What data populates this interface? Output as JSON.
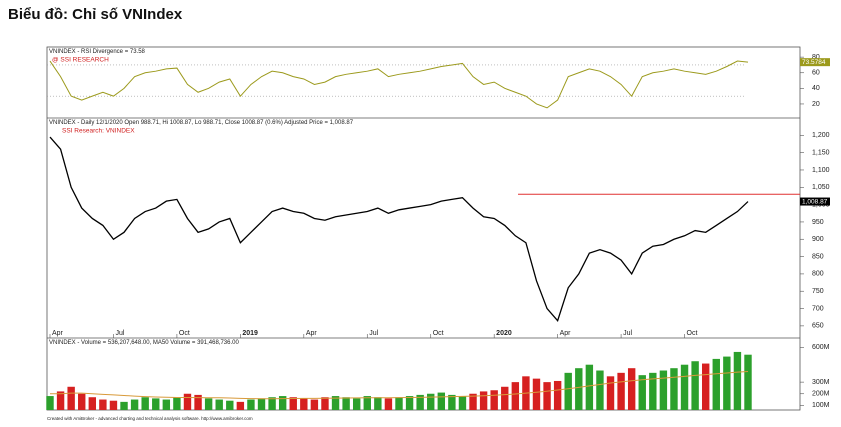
{
  "page_title": "Biểu đồ: Chỉ số VNIndex",
  "footer": "Created with AmiBroker - advanced charting and technical analysis software. http://www.amibroker.com",
  "categories": [
    "Apr",
    null,
    null,
    null,
    null,
    null,
    "Jul",
    null,
    null,
    null,
    null,
    null,
    "Oct",
    null,
    null,
    null,
    null,
    null,
    "2019",
    null,
    null,
    null,
    null,
    null,
    "Apr",
    null,
    null,
    null,
    null,
    null,
    "Jul",
    null,
    null,
    null,
    null,
    null,
    "Oct",
    null,
    null,
    null,
    null,
    null,
    "2020",
    null,
    null,
    null,
    null,
    null,
    "Apr",
    null,
    null,
    null,
    null,
    null,
    "Jul",
    null,
    null,
    null,
    null,
    null,
    "Oct",
    null,
    null,
    null,
    null,
    null,
    null
  ],
  "chart_data": [
    {
      "type": "line",
      "title": "VNINDEX - RSI Divergence = 73.58",
      "subtitle": "@ SSI RESEARCH",
      "badge": "73.5784",
      "series": [
        {
          "name": "RSI",
          "color": "#9c9a1c",
          "values": [
            75,
            55,
            30,
            25,
            30,
            35,
            30,
            40,
            55,
            60,
            62,
            65,
            66,
            45,
            35,
            40,
            48,
            52,
            30,
            45,
            55,
            62,
            60,
            55,
            52,
            45,
            48,
            55,
            58,
            60,
            62,
            65,
            55,
            58,
            60,
            62,
            65,
            68,
            70,
            72,
            55,
            45,
            48,
            40,
            35,
            30,
            20,
            15,
            25,
            55,
            60,
            65,
            62,
            55,
            45,
            30,
            55,
            60,
            62,
            65,
            62,
            60,
            58,
            62,
            68,
            75,
            73.58
          ]
        }
      ],
      "ylim": [
        2,
        93
      ],
      "yticks": [
        20,
        40,
        60,
        80
      ],
      "levels": [
        30,
        70
      ]
    },
    {
      "type": "line",
      "title": "VNINDEX - Daily 12/1/2020 Open 988.71, Hi 1008.87, Lo 988.71, Close 1008.87 (0.6%) Adjusted Price = 1,008.87",
      "subtitle": "SSI Research: VNINDEX",
      "badge": "1,008.87",
      "series": [
        {
          "name": "VNINDEX",
          "color": "#000000",
          "values": [
            1195,
            1160,
            1050,
            990,
            960,
            940,
            900,
            920,
            960,
            980,
            990,
            1010,
            1015,
            960,
            920,
            930,
            950,
            960,
            890,
            920,
            950,
            980,
            990,
            980,
            975,
            960,
            955,
            965,
            970,
            975,
            980,
            990,
            975,
            985,
            990,
            995,
            1000,
            1010,
            1015,
            1020,
            990,
            965,
            960,
            940,
            910,
            890,
            780,
            700,
            665,
            760,
            800,
            860,
            870,
            860,
            840,
            800,
            860,
            880,
            885,
            900,
            910,
            925,
            920,
            940,
            960,
            980,
            1008.87
          ]
        }
      ],
      "ylim": [
        615,
        1250
      ],
      "yticks": [
        650,
        700,
        750,
        800,
        850,
        900,
        950,
        {
          "value": 1000,
          "label": "1,000"
        },
        {
          "value": 1050,
          "label": "1,050"
        },
        {
          "value": 1100,
          "label": "1,100"
        },
        {
          "value": 1150,
          "label": "1,150"
        },
        {
          "value": 1200,
          "label": "1,200"
        }
      ],
      "resistance": {
        "value": 1030,
        "color": "#e03030"
      }
    },
    {
      "type": "bar",
      "title": "VNINDEX - Volume = 536,207,648.00, MA50 Volume = 391,468,736.00",
      "series": [
        {
          "name": "Volume",
          "color": "#2ca02c",
          "down_color": "#d62020",
          "values": [
            180000000,
            220000000,
            260000000,
            200000000,
            170000000,
            150000000,
            140000000,
            130000000,
            150000000,
            170000000,
            160000000,
            150000000,
            170000000,
            200000000,
            190000000,
            160000000,
            150000000,
            140000000,
            130000000,
            150000000,
            160000000,
            170000000,
            180000000,
            170000000,
            160000000,
            150000000,
            170000000,
            180000000,
            170000000,
            160000000,
            180000000,
            170000000,
            160000000,
            170000000,
            180000000,
            190000000,
            200000000,
            210000000,
            190000000,
            180000000,
            200000000,
            220000000,
            230000000,
            260000000,
            300000000,
            350000000,
            330000000,
            300000000,
            310000000,
            380000000,
            420000000,
            450000000,
            400000000,
            350000000,
            380000000,
            420000000,
            360000000,
            380000000,
            400000000,
            420000000,
            450000000,
            480000000,
            460000000,
            500000000,
            520000000,
            560000000,
            536207648
          ]
        },
        {
          "name": "MA50 Volume",
          "color": "#d89a3a",
          "values": [
            200000000,
            200000000,
            205000000,
            205000000,
            200000000,
            195000000,
            190000000,
            185000000,
            180000000,
            175000000,
            172000000,
            170000000,
            168000000,
            168000000,
            167000000,
            166000000,
            165000000,
            163000000,
            160000000,
            158000000,
            157000000,
            157000000,
            158000000,
            159000000,
            160000000,
            160000000,
            161000000,
            162000000,
            163000000,
            164000000,
            165000000,
            166000000,
            166000000,
            167000000,
            168000000,
            169000000,
            171000000,
            173000000,
            175000000,
            177000000,
            180000000,
            183000000,
            187000000,
            192000000,
            198000000,
            205000000,
            213000000,
            222000000,
            232000000,
            243000000,
            255000000,
            268000000,
            280000000,
            292000000,
            302000000,
            312000000,
            320000000,
            328000000,
            335000000,
            342000000,
            350000000,
            358000000,
            365000000,
            372000000,
            379000000,
            386000000,
            391468736
          ]
        }
      ],
      "ylim": [
        60000000,
        680000000
      ],
      "yticks": [
        {
          "value": 100000000,
          "label": "100M"
        },
        {
          "value": 200000000,
          "label": "200M"
        },
        {
          "value": 300000000,
          "label": "300M"
        },
        {
          "value": 600000000,
          "label": "600M"
        }
      ]
    }
  ]
}
